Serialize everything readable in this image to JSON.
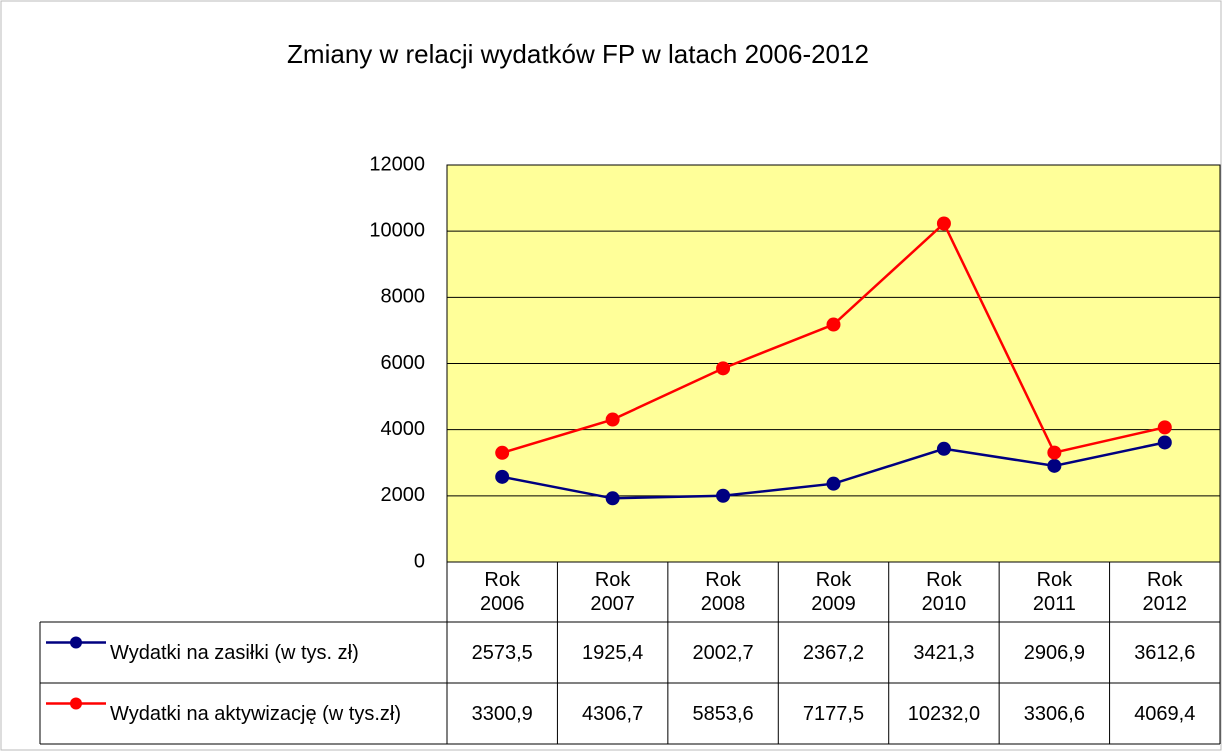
{
  "chart_data": {
    "type": "line",
    "title": "Zmiany w relacji wydatków FP w latach 2006-2012",
    "categories": [
      "Rok 2006",
      "Rok 2007",
      "Rok 2008",
      "Rok 2009",
      "Rok 2010",
      "Rok 2011",
      "Rok 2012"
    ],
    "series": [
      {
        "name": "Wydatki na zasiłki (w tys. zł)",
        "color": "#000080",
        "values": [
          2573.5,
          1925.4,
          2002.7,
          2367.2,
          3421.3,
          2906.9,
          3612.6
        ],
        "value_labels": [
          "2573,5",
          "1925,4",
          "2002,7",
          "2367,2",
          "3421,3",
          "2906,9",
          "3612,6"
        ]
      },
      {
        "name": "Wydatki na aktywizację (w tys.zł)",
        "color": "#ff0000",
        "values": [
          3300.9,
          4306.7,
          5853.6,
          7177.5,
          10232.0,
          3306.6,
          4069.4
        ],
        "value_labels": [
          "3300,9",
          "4306,7",
          "5853,6",
          "7177,5",
          "10232,0",
          "3306,6",
          "4069,4"
        ]
      }
    ],
    "ylim": [
      0,
      12000
    ],
    "yticks": [
      0,
      2000,
      4000,
      6000,
      8000,
      10000,
      12000
    ],
    "grid": true,
    "plot_background": "#ffff99"
  }
}
